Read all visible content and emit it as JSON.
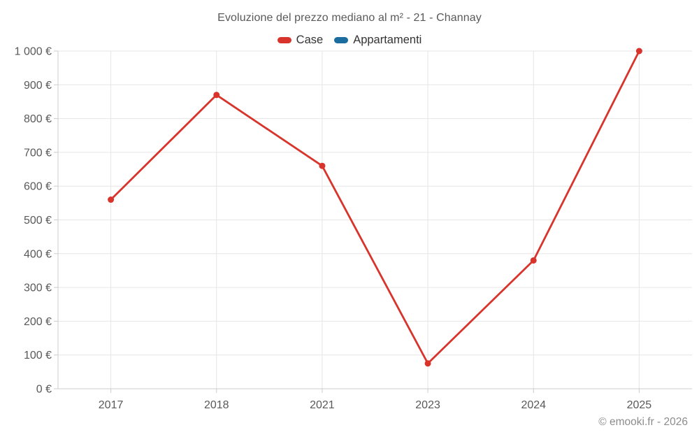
{
  "footer": {
    "copyright": "© emooki.fr - 2026"
  },
  "colors": {
    "case_red": "#d9342c",
    "appartamenti_blue": "#1a6d9e",
    "grid": "#e6e6e6",
    "axis": "#cccccc",
    "title_text": "#595959",
    "tick_text": "#595959",
    "legend_text": "#333333",
    "copyright_text": "#8c8c8c"
  },
  "chart_data": {
    "type": "line",
    "title": "Evoluzione del prezzo mediano al m² - 21 - Channay",
    "categories": [
      "2017",
      "2018",
      "2021",
      "2023",
      "2024",
      "2025"
    ],
    "series": [
      {
        "name": "Case",
        "color": "#d9342c",
        "values": [
          560,
          870,
          660,
          75,
          380,
          1000
        ]
      },
      {
        "name": "Appartamenti",
        "color": "#1a6d9e",
        "values": []
      }
    ],
    "xlabel": "",
    "ylabel": "",
    "ylim": [
      0,
      1000
    ],
    "y_ticks": [
      0,
      100,
      200,
      300,
      400,
      500,
      600,
      700,
      800,
      900,
      1000
    ],
    "y_tick_labels": [
      "0 €",
      "100 €",
      "200 €",
      "300 €",
      "400 €",
      "500 €",
      "600 €",
      "700 €",
      "800 €",
      "900 €",
      "1 000 €"
    ],
    "grid": true,
    "legend_position": "top-center",
    "marker": "circle"
  }
}
